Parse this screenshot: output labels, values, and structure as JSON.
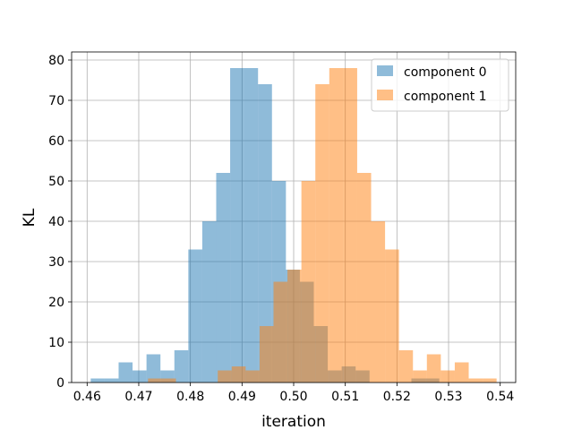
{
  "chart_data": {
    "type": "bar",
    "title": "",
    "xlabel": "iteration",
    "ylabel": "KL",
    "xlim": [
      0.457,
      0.543
    ],
    "ylim": [
      0,
      82
    ],
    "grid": true,
    "legend_position": "top-right",
    "xticks": [
      "0.46",
      "0.47",
      "0.48",
      "0.49",
      "0.50",
      "0.51",
      "0.52",
      "0.53",
      "0.54"
    ],
    "xtick_values": [
      0.46,
      0.47,
      0.48,
      0.49,
      0.5,
      0.51,
      0.52,
      0.53,
      0.54
    ],
    "yticks": [
      "0",
      "10",
      "20",
      "30",
      "40",
      "50",
      "60",
      "70",
      "80"
    ],
    "ytick_values": [
      0,
      10,
      20,
      30,
      40,
      50,
      60,
      70,
      80
    ],
    "series": [
      {
        "name": "component 0",
        "color": "#1f77b4",
        "opacity": 0.5,
        "bin_edges": [
          0.4607,
          0.4634,
          0.4661,
          0.4688,
          0.4715,
          0.4742,
          0.4769,
          0.4796,
          0.4823,
          0.485,
          0.4877,
          0.4904,
          0.4931,
          0.4958,
          0.4985,
          0.5012,
          0.5039,
          0.5066,
          0.5093,
          0.512,
          0.5147,
          0.5174,
          0.5201,
          0.5228,
          0.5255,
          0.5282
        ],
        "values": [
          1,
          1,
          5,
          3,
          7,
          3,
          8,
          33,
          40,
          52,
          78,
          78,
          74,
          50,
          28,
          25,
          14,
          3,
          4,
          3,
          0,
          0,
          0,
          1,
          1
        ]
      },
      {
        "name": "component 1",
        "color": "#ff7f0e",
        "opacity": 0.5,
        "bin_edges": [
          0.4718,
          0.4745,
          0.4772,
          0.4799,
          0.4826,
          0.4853,
          0.488,
          0.4907,
          0.4934,
          0.4961,
          0.4988,
          0.5015,
          0.5042,
          0.5069,
          0.5096,
          0.5123,
          0.515,
          0.5177,
          0.5204,
          0.5231,
          0.5258,
          0.5285,
          0.5312,
          0.5339,
          0.5366,
          0.5393
        ],
        "values": [
          1,
          1,
          0,
          0,
          0,
          3,
          4,
          3,
          14,
          25,
          28,
          50,
          74,
          78,
          78,
          52,
          40,
          33,
          8,
          3,
          7,
          3,
          5,
          1,
          1
        ]
      }
    ]
  }
}
